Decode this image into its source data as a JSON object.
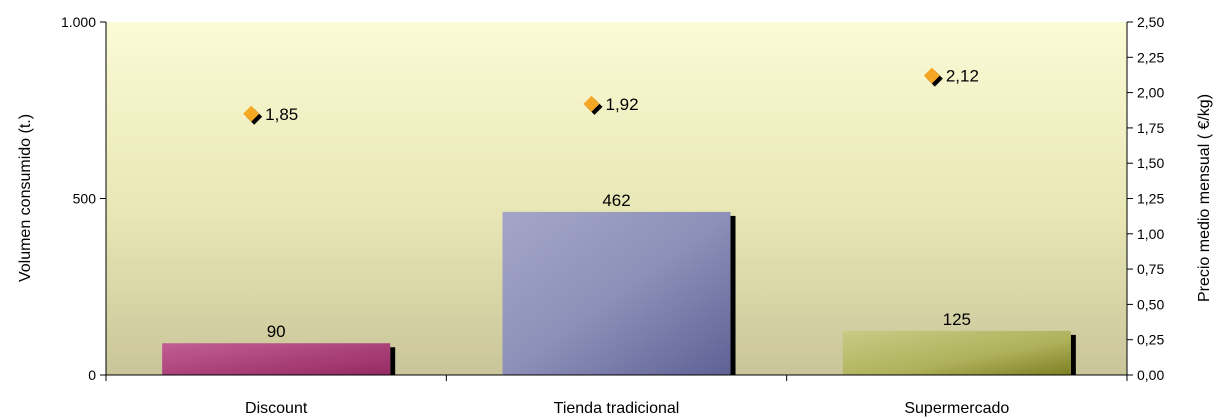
{
  "chart_data": {
    "type": "bar",
    "categories": [
      "Discount",
      "Tienda tradicional",
      "Supermercado"
    ],
    "series": [
      {
        "values": [
          90,
          462,
          125
        ],
        "value_labels": [
          "90",
          "462",
          "125"
        ],
        "axis": "left",
        "colors": [
          "#b0407a",
          "#7d80ac",
          "#a9ab48"
        ]
      },
      {
        "values": [
          1.85,
          1.92,
          2.12
        ],
        "value_labels": [
          "1,85",
          "1,92",
          "2,12"
        ],
        "axis": "right",
        "marker": "diamond",
        "color": "#f5a623"
      }
    ],
    "ylabel": "Volumen consumido (t.)",
    "y2label": "Precio medio mensual ( €/kg)",
    "ylim": [
      0,
      1000
    ],
    "y2lim": [
      0,
      2.5
    ],
    "yticks": [
      0,
      500,
      1000
    ],
    "ytick_labels": [
      "0",
      "500",
      "1.000"
    ],
    "y2ticks": [
      0,
      0.25,
      0.5,
      0.75,
      1,
      1.25,
      1.5,
      1.75,
      2,
      2.25,
      2.5
    ],
    "y2tick_labels": [
      "0,00",
      "0,25",
      "0,50",
      "0,75",
      "1,00",
      "1,25",
      "1,50",
      "1,75",
      "2,00",
      "2,25",
      "2,50"
    ],
    "grid": false,
    "background": "gradient light yellow to olive"
  }
}
